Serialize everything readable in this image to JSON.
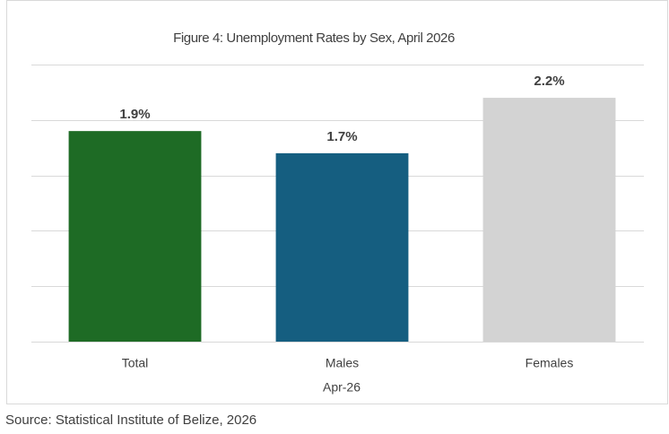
{
  "chart_data": {
    "type": "bar",
    "title": "Figure 4: Unemployment Rates by Sex, April 2026",
    "categories": [
      "Total",
      "Males",
      "Females"
    ],
    "values": [
      1.9,
      1.7,
      2.2
    ],
    "value_labels": [
      "1.9%",
      "1.7%",
      "2.2%"
    ],
    "colors": [
      "#1e6b25",
      "#155e80",
      "#d3d3d3"
    ],
    "x_label": "Apr-26",
    "ylim": [
      0,
      2.5
    ],
    "yticks": [
      0,
      0.5,
      1,
      1.5,
      2,
      2.5
    ],
    "grid": true,
    "source": "Source: Statistical Institute of Belize, 2026"
  }
}
